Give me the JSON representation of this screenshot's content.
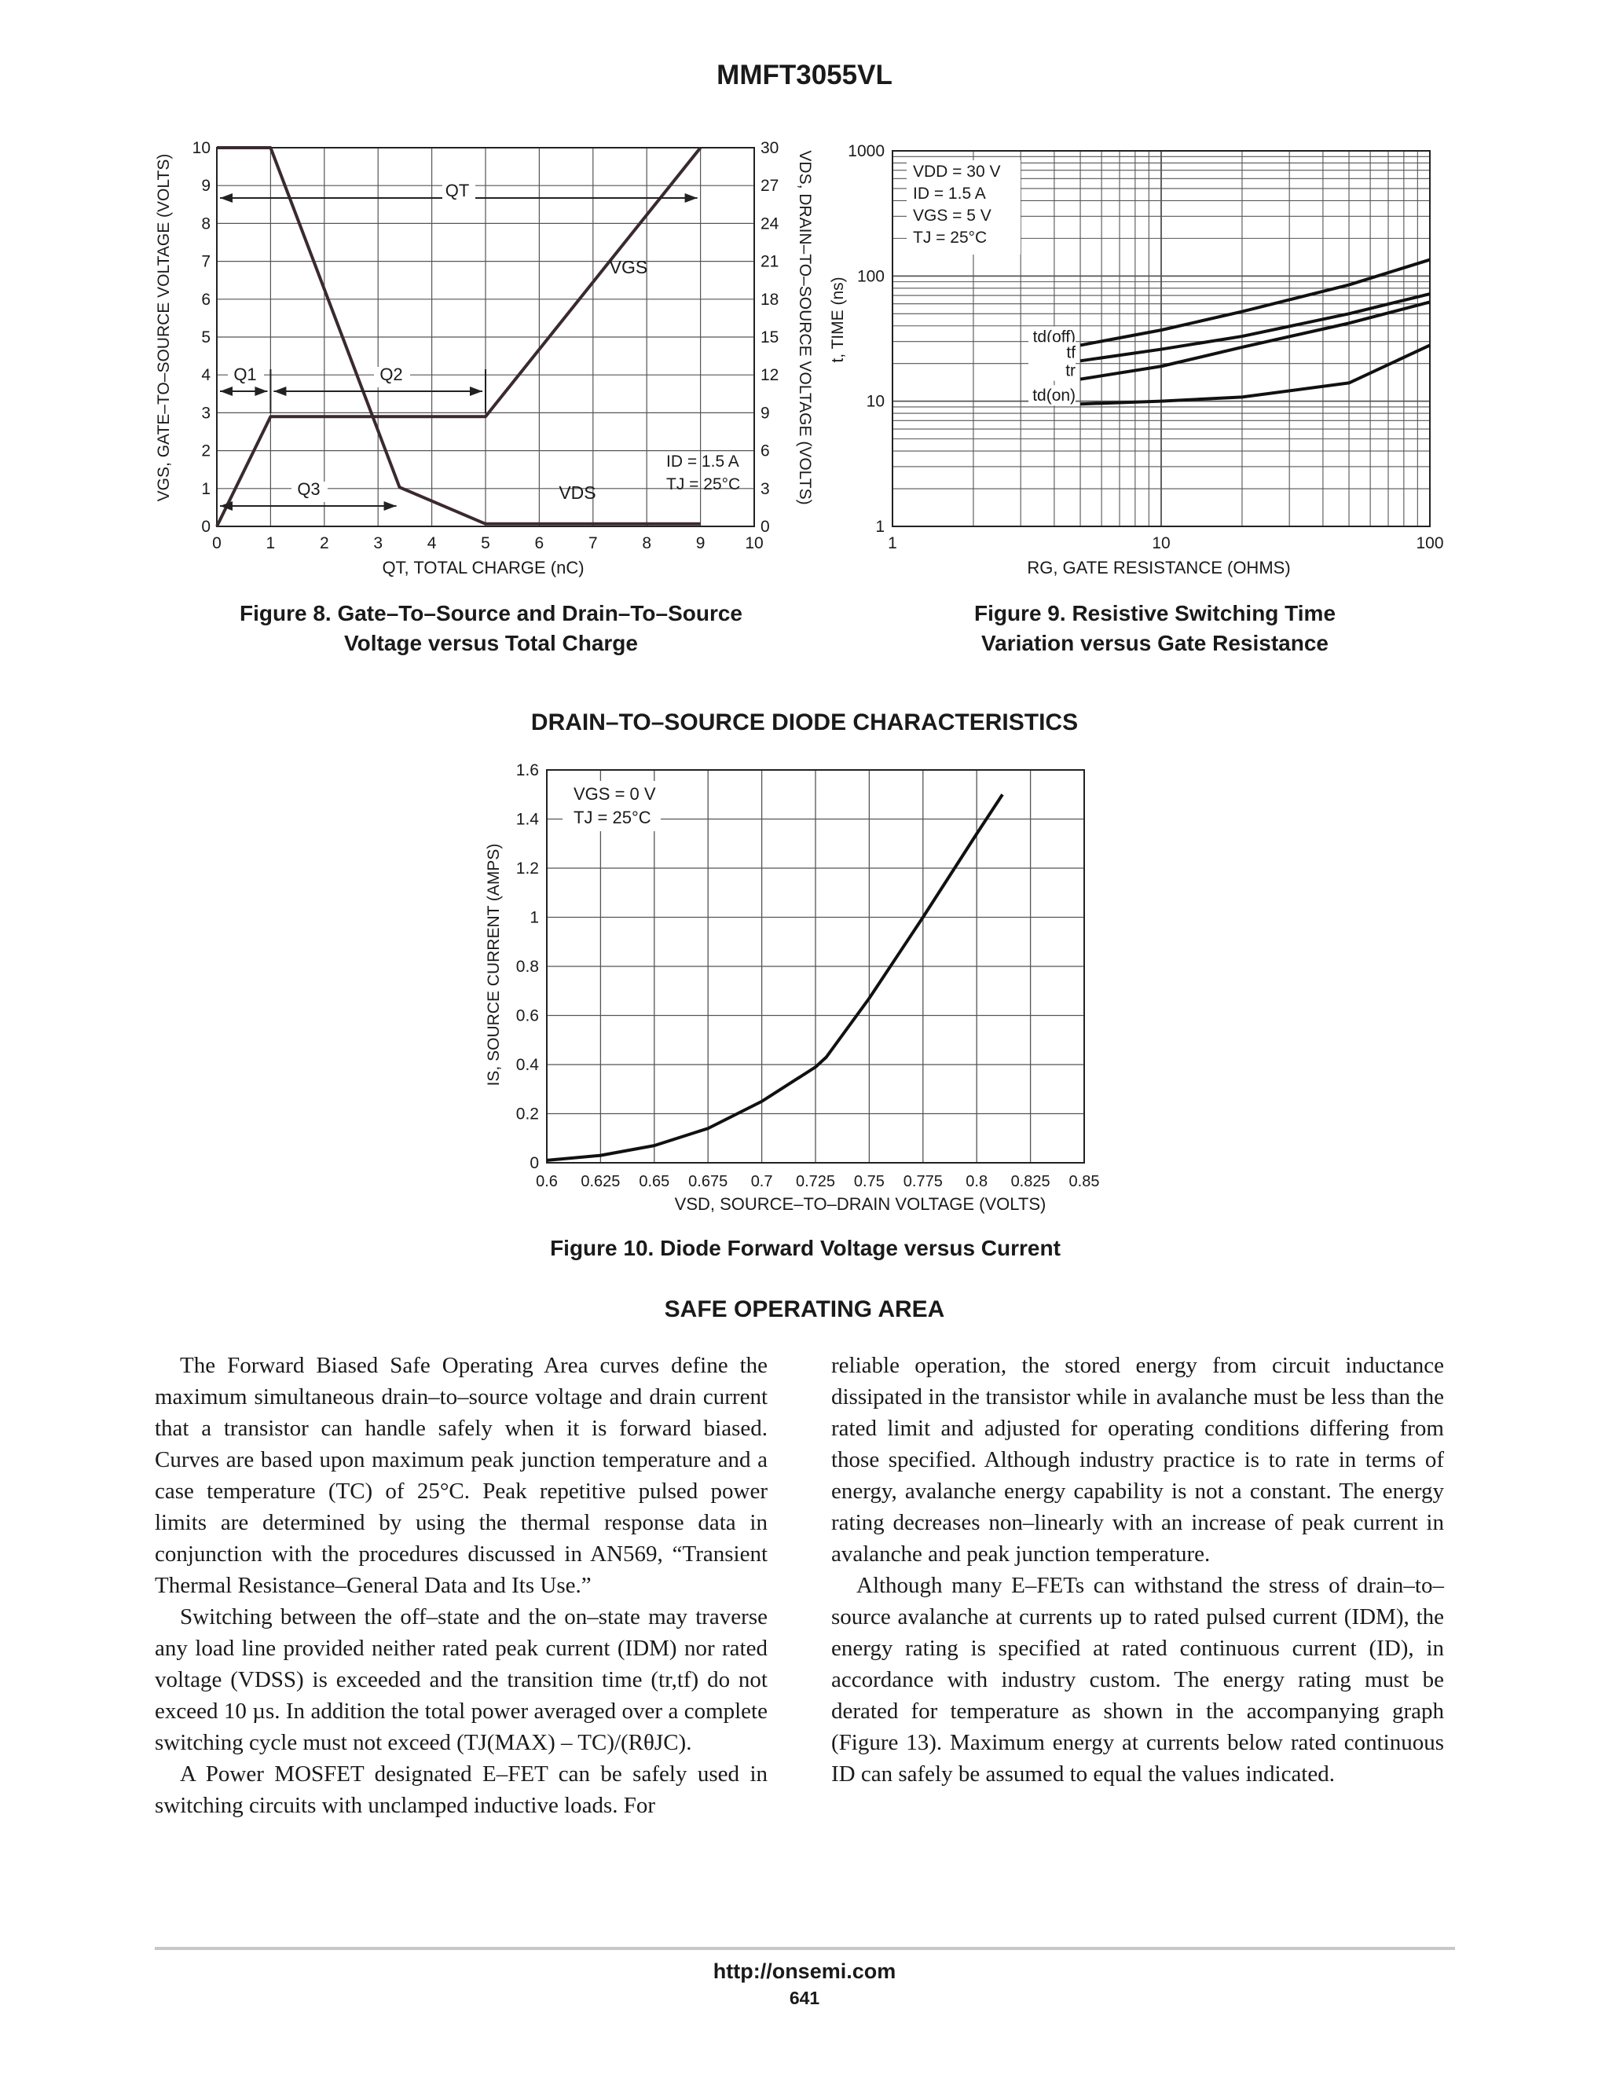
{
  "document": {
    "title": "MMFT3055VL",
    "footer_url": "http://onsemi.com",
    "page_number": "641"
  },
  "figure8": {
    "caption_line1": "Figure 8. Gate–To–Source and Drain–To–Source",
    "caption_line2": "Voltage versus Total Charge",
    "xlabel": "QT, TOTAL CHARGE (nC)",
    "ylabel_left": "VGS, GATE–TO–SOURCE VOLTAGE (VOLTS)",
    "ylabel_right": "VDS, DRAIN–TO–SOURCE VOLTAGE (VOLTS)",
    "annotations": {
      "qt": "QT",
      "q1": "Q1",
      "q2": "Q2",
      "q3": "Q3",
      "vgs": "VGS",
      "vds": "VDS",
      "id": "ID = 1.5 A",
      "tj": "TJ = 25°C"
    }
  },
  "figure9": {
    "caption_line1": "Figure 9. Resistive Switching Time",
    "caption_line2": "Variation versus Gate Resistance",
    "xlabel": "RG, GATE RESISTANCE (OHMS)",
    "ylabel": "t, TIME (ns)",
    "conditions": [
      "VDD = 30 V",
      "ID = 1.5 A",
      "VGS = 5 V",
      "TJ = 25°C"
    ]
  },
  "figure10": {
    "section_title": "DRAIN–TO–SOURCE DIODE CHARACTERISTICS",
    "caption": "Figure 10. Diode Forward Voltage versus Current",
    "xlabel": "VSD, SOURCE–TO–DRAIN VOLTAGE (VOLTS)",
    "ylabel": "IS, SOURCE CURRENT (AMPS)",
    "conditions": [
      "VGS = 0 V",
      "TJ = 25°C"
    ]
  },
  "soa": {
    "title": "SAFE OPERATING AREA",
    "left_col": [
      "The Forward Biased Safe Operating Area curves define the maximum simultaneous drain–to–source voltage and drain current that a transistor can handle safely when it is forward biased. Curves are based upon maximum peak junction temperature and a case temperature (TC) of 25°C. Peak repetitive pulsed power limits are determined by using the thermal response data in conjunction with the procedures discussed in AN569, “Transient Thermal Resistance–General Data and Its Use.”",
      "Switching between the off–state and the on–state may traverse any load line provided neither rated peak current (IDM) nor rated voltage (VDSS) is exceeded and the transition time (tr,tf) do not exceed 10 µs. In addition the total power averaged over a complete switching cycle must not exceed (TJ(MAX) – TC)/(RθJC).",
      "A Power MOSFET designated E–FET can be safely used in switching circuits with unclamped inductive loads. For"
    ],
    "right_col": [
      "reliable operation, the stored energy from circuit inductance dissipated in the transistor while in avalanche must be less than the rated limit and adjusted for operating conditions differing from those specified. Although industry practice is to rate in terms of energy, avalanche energy capability is not a constant. The energy rating decreases non–linearly with an increase of peak current in avalanche and peak junction temperature.",
      "Although many E–FETs can withstand the stress of drain–to–source avalanche at currents up to rated pulsed current (IDM), the energy rating is specified at rated continuous current (ID), in accordance with industry custom. The energy rating must be derated for temperature as shown in the accompanying graph (Figure 13). Maximum energy at currents below rated continuous ID can safely be assumed to equal the values indicated."
    ]
  },
  "chart_data": [
    {
      "type": "line",
      "title": "",
      "xlabel": "QT, TOTAL CHARGE (nC)",
      "ylabel": "VGS, GATE–TO–SOURCE VOLTAGE (VOLTS)",
      "y2label": "VDS, DRAIN–TO–SOURCE VOLTAGE (VOLTS)",
      "xlim": [
        0,
        10
      ],
      "ylim": [
        0,
        10
      ],
      "y2lim": [
        0,
        30
      ],
      "xticks": [
        0,
        1,
        2,
        3,
        4,
        5,
        6,
        7,
        8,
        9,
        10
      ],
      "yticks": [
        0,
        1,
        2,
        3,
        4,
        5,
        6,
        7,
        8,
        9,
        10
      ],
      "y2ticks": [
        0,
        3,
        6,
        9,
        12,
        15,
        18,
        21,
        24,
        27,
        30
      ],
      "grid": true,
      "series": [
        {
          "name": "VGS",
          "axis": "left",
          "x": [
            0,
            1,
            5,
            9
          ],
          "y": [
            0,
            2.9,
            2.9,
            10
          ]
        },
        {
          "name": "VDS",
          "axis": "right",
          "x": [
            0,
            1,
            3.4,
            5,
            9
          ],
          "y": [
            30,
            30,
            3.1,
            0.2,
            0.2
          ]
        }
      ]
    },
    {
      "type": "line",
      "title": "",
      "xlabel": "RG, GATE RESISTANCE (OHMS)",
      "ylabel": "t, TIME (ns)",
      "xscale": "log",
      "yscale": "log",
      "xlim": [
        1,
        100
      ],
      "ylim": [
        1,
        1000
      ],
      "xticks": [
        1,
        10,
        100
      ],
      "yticks": [
        1,
        10,
        100,
        1000
      ],
      "grid": true,
      "series": [
        {
          "name": "td(off)",
          "x": [
            5,
            10,
            20,
            50,
            100
          ],
          "y": [
            28,
            37,
            52,
            85,
            135
          ]
        },
        {
          "name": "tf",
          "x": [
            5,
            10,
            20,
            50,
            100
          ],
          "y": [
            21,
            26,
            33,
            50,
            72
          ]
        },
        {
          "name": "tr",
          "x": [
            5,
            10,
            20,
            50,
            100
          ],
          "y": [
            15,
            19,
            27,
            42,
            62
          ]
        },
        {
          "name": "td(on)",
          "x": [
            5,
            10,
            20,
            50,
            100
          ],
          "y": [
            9.5,
            10,
            10.8,
            14,
            28
          ]
        }
      ]
    },
    {
      "type": "line",
      "title": "",
      "xlabel": "VSD, SOURCE–TO–DRAIN VOLTAGE (VOLTS)",
      "ylabel": "IS, SOURCE CURRENT (AMPS)",
      "xlim": [
        0.6,
        0.85
      ],
      "ylim": [
        0,
        1.6
      ],
      "xticks": [
        0.6,
        0.625,
        0.65,
        0.675,
        0.7,
        0.725,
        0.75,
        0.775,
        0.8,
        0.825,
        0.85
      ],
      "yticks": [
        0,
        0.2,
        0.4,
        0.6,
        0.8,
        1,
        1.2,
        1.4,
        1.6
      ],
      "grid": true,
      "series": [
        {
          "name": "IS",
          "x": [
            0.6,
            0.625,
            0.65,
            0.675,
            0.7,
            0.725,
            0.73,
            0.75,
            0.775,
            0.8,
            0.812
          ],
          "y": [
            0.01,
            0.03,
            0.07,
            0.14,
            0.25,
            0.39,
            0.43,
            0.67,
            1.0,
            1.34,
            1.5
          ]
        }
      ]
    }
  ]
}
